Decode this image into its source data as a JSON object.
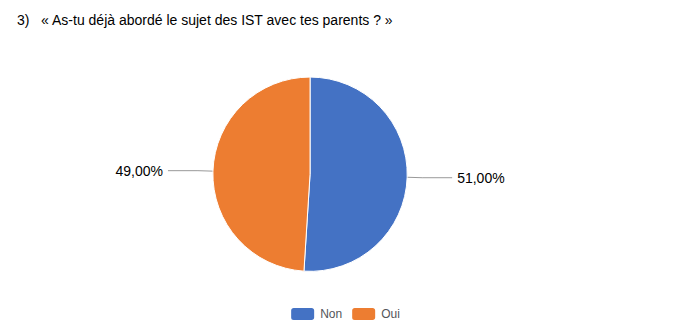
{
  "chart_data": {
    "type": "pie",
    "title": "3)   « As-tu déjà abordé le sujet des IST avec tes parents ? »",
    "categories": [
      "Non",
      "Oui"
    ],
    "values": [
      51.0,
      49.0
    ],
    "value_labels": [
      "51,00%",
      "49,00%"
    ],
    "colors": [
      "#4472C4",
      "#ED7D31"
    ],
    "data_labels": true,
    "legend": "bottom"
  }
}
